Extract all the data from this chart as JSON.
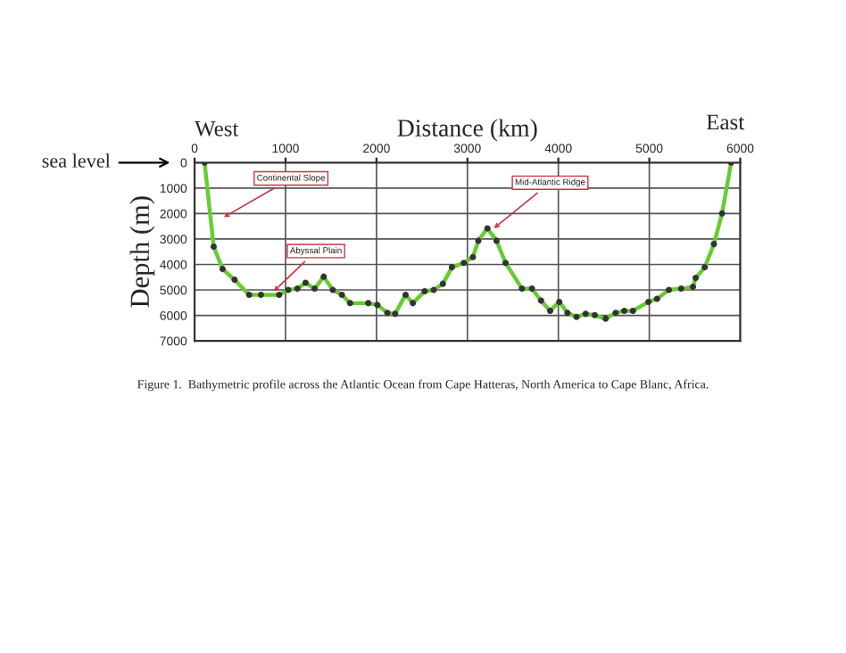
{
  "chart_data": {
    "type": "line",
    "xlabel": "Distance (km)",
    "ylabel": "Depth (m)",
    "xlim": [
      0,
      6000
    ],
    "xticks": [
      0,
      1000,
      2000,
      3000,
      4000,
      5000,
      6000
    ],
    "ylim": [
      7000,
      0
    ],
    "yticks": [
      0,
      1000,
      2000,
      3000,
      4000,
      5000,
      6000,
      7000
    ],
    "grid": true,
    "legend": false,
    "marker": "circle",
    "line_style": "solid",
    "series": [
      {
        "color": "#66cc33",
        "x": [
          110,
          210,
          308,
          440,
          600,
          730,
          930,
          1030,
          1130,
          1220,
          1320,
          1420,
          1520,
          1620,
          1710,
          1910,
          2010,
          2120,
          2205,
          2320,
          2400,
          2530,
          2630,
          2730,
          2830,
          2960,
          3060,
          3120,
          3220,
          3320,
          3420,
          3600,
          3710,
          3810,
          3910,
          4010,
          4100,
          4200,
          4300,
          4400,
          4520,
          4630,
          4725,
          4820,
          4990,
          5085,
          5215,
          5350,
          5480,
          5510,
          5610,
          5710,
          5800,
          5900
        ],
        "values": [
          0,
          3300,
          4180,
          4600,
          5190,
          5190,
          5190,
          5000,
          4950,
          4720,
          4950,
          4480,
          5000,
          5190,
          5520,
          5520,
          5590,
          5900,
          5940,
          5190,
          5520,
          5050,
          5000,
          4760,
          4110,
          3940,
          3710,
          3070,
          2580,
          3070,
          3940,
          4950,
          4950,
          5420,
          5820,
          5470,
          5900,
          6060,
          5940,
          5990,
          6130,
          5900,
          5820,
          5820,
          5470,
          5350,
          5000,
          4950,
          4880,
          4530,
          4110,
          3200,
          2000,
          0
        ]
      }
    ],
    "annotations": [
      "West",
      "East",
      "Figure 1.  Bathymetric profile across the Atlantic Ocean from Cape Hatteras, North America to Cape Blanc, Africa.",
      "sea level",
      {
        "text": "Continental Slope",
        "x": 275,
        "y": 2240
      },
      {
        "text": "Abyssal Plain",
        "x": 830,
        "y": 5190
      },
      {
        "text": "Mid-Atlantic Ridge",
        "x": 3250,
        "y": 2700
      }
    ]
  }
}
